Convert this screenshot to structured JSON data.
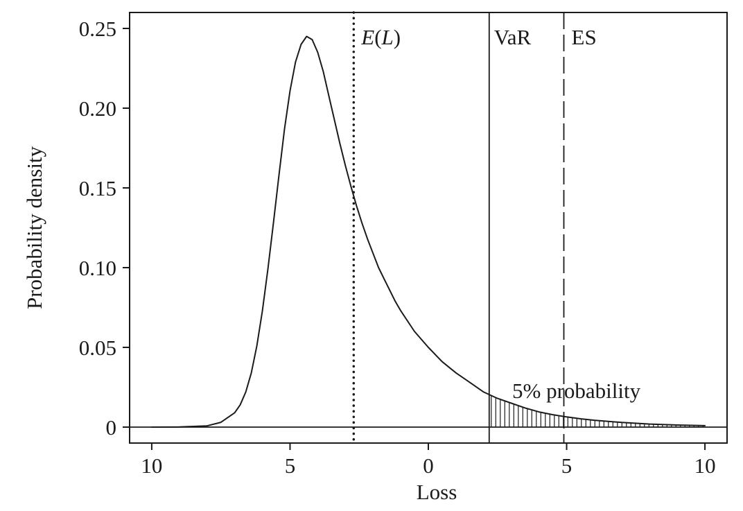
{
  "chart_data": {
    "type": "line",
    "title": "",
    "xlabel": "Loss",
    "ylabel": "Probability density",
    "xlim": [
      -10.8,
      10.8
    ],
    "ylim": [
      -0.01,
      0.26
    ],
    "x_ticks": [
      {
        "value": -10,
        "label": "10"
      },
      {
        "value": -5,
        "label": "5"
      },
      {
        "value": 0,
        "label": "0"
      },
      {
        "value": 5,
        "label": "5"
      },
      {
        "value": 10,
        "label": "10"
      }
    ],
    "y_ticks": [
      {
        "value": 0,
        "label": "0"
      },
      {
        "value": 0.05,
        "label": "0.05"
      },
      {
        "value": 0.1,
        "label": "0.10"
      },
      {
        "value": 0.15,
        "label": "0.15"
      },
      {
        "value": 0.2,
        "label": "0.20"
      },
      {
        "value": 0.25,
        "label": "0.25"
      }
    ],
    "grid": false,
    "series": [
      {
        "line_style": "solid",
        "x": [
          -10,
          -9,
          -8,
          -7.5,
          -7,
          -6.8,
          -6.6,
          -6.4,
          -6.2,
          -6,
          -5.8,
          -5.6,
          -5.4,
          -5.2,
          -5,
          -4.8,
          -4.6,
          -4.4,
          -4.2,
          -4.0,
          -3.8,
          -3.6,
          -3.4,
          -3.2,
          -3.0,
          -2.8,
          -2.6,
          -2.4,
          -2.2,
          -2.0,
          -1.8,
          -1.6,
          -1.4,
          -1.2,
          -1.0,
          -0.5,
          0,
          0.5,
          1.0,
          1.5,
          2.0,
          2.5,
          3.0,
          3.5,
          4.0,
          4.5,
          5.0,
          5.5,
          6.0,
          7.0,
          8.0,
          9.0,
          10.0
        ],
        "y": [
          0,
          0.0001,
          0.0008,
          0.003,
          0.009,
          0.014,
          0.022,
          0.034,
          0.051,
          0.073,
          0.099,
          0.128,
          0.158,
          0.187,
          0.211,
          0.229,
          0.24,
          0.245,
          0.243,
          0.235,
          0.223,
          0.208,
          0.193,
          0.178,
          0.164,
          0.151,
          0.139,
          0.128,
          0.118,
          0.109,
          0.1,
          0.093,
          0.086,
          0.079,
          0.073,
          0.06,
          0.05,
          0.041,
          0.034,
          0.028,
          0.022,
          0.018,
          0.015,
          0.012,
          0.0095,
          0.0078,
          0.0064,
          0.0052,
          0.0043,
          0.0029,
          0.0019,
          0.0013,
          0.0009
        ]
      }
    ],
    "reference_lines": [
      {
        "id": "expected-loss",
        "x": -2.7,
        "style": "dotted",
        "label_main": "E",
        "label_paren_open": "(",
        "label_italic_var": "L",
        "label_paren_close": ")"
      },
      {
        "id": "var",
        "x": 2.2,
        "style": "solid",
        "label": "VaR"
      },
      {
        "id": "es",
        "x": 4.9,
        "style": "dashed",
        "label": "ES"
      }
    ],
    "baseline_y": 0,
    "shaded_tail": {
      "from_x": 2.2,
      "to_x": 10,
      "pattern": "vertical-hatch",
      "label": "5% probability"
    }
  }
}
